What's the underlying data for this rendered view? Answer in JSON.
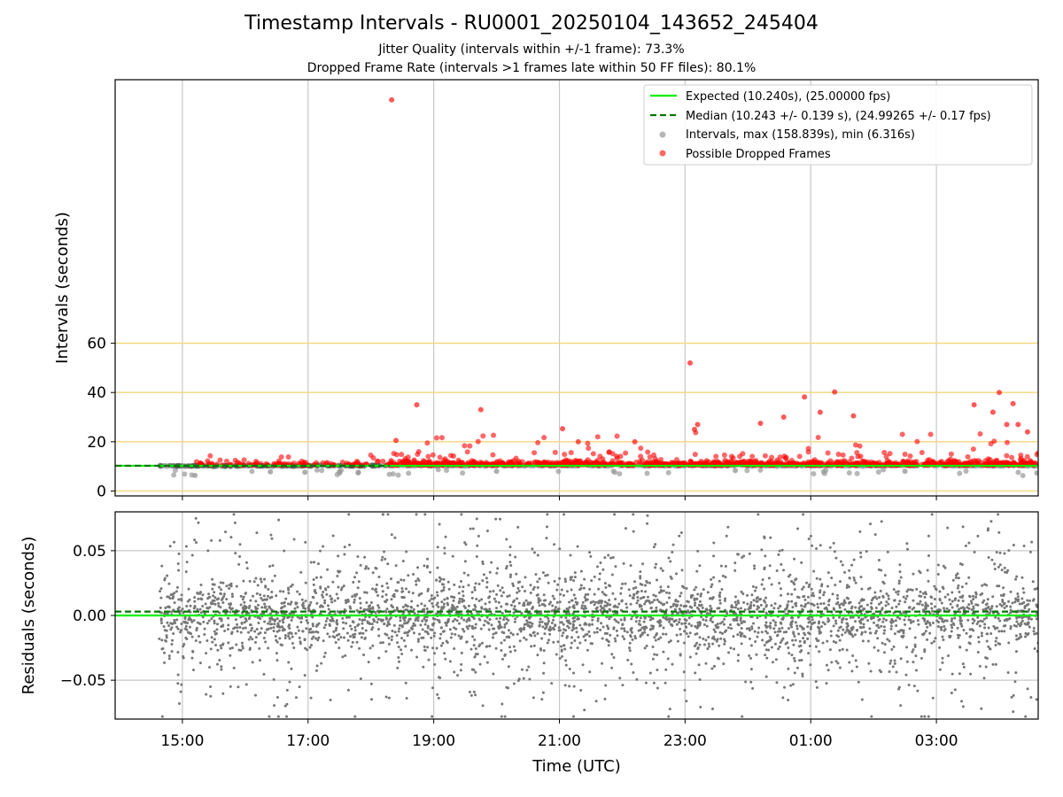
{
  "title": "Timestamp Intervals - RU0001_20250104_143652_245404",
  "subtitle_1": "Jitter Quality (intervals within +/-1 frame): 73.3%",
  "subtitle_2": "Dropped Frame Rate (intervals >1 frames late within 50 FF files): 80.1%",
  "colors": {
    "expected": "#00ee00",
    "median": "#007700",
    "intervals": "#999999",
    "dropped": "#ff0000",
    "residuals": "#777777",
    "reference": "#f5d77a",
    "grid": "#c8c8c8"
  },
  "chart_data": [
    {
      "type": "scatter",
      "panel": "intervals",
      "ylabel": "Intervals (seconds)",
      "y_ticks": [
        0,
        20,
        40,
        60
      ],
      "ylim": [
        -2,
        167
      ],
      "x_ticks": [
        "15:00",
        "17:00",
        "19:00",
        "21:00",
        "23:00",
        "01:00",
        "03:00"
      ],
      "xlim_hours": [
        13.93,
        28.62
      ],
      "reference_lines": [
        0,
        20,
        40,
        60
      ],
      "grid": "vertical",
      "legend_position": "top-right",
      "legend": [
        {
          "label": "Expected (10.240s), (25.00000 fps)",
          "kind": "line"
        },
        {
          "label": "Median (10.243 +/- 0.139 s), (24.99265 +/- 0.17 fps)",
          "kind": "dashed"
        },
        {
          "label": "Intervals, max (158.839s), min (6.316s)",
          "kind": "gray-dot"
        },
        {
          "label": "Possible Dropped Frames",
          "kind": "red-dot"
        }
      ],
      "expected_interval": 10.24,
      "median_interval": 10.243,
      "max_interval": 158.839,
      "min_interval": 6.316,
      "data_start_hour": 14.62,
      "data_end_hour": 28.62,
      "dense_dropped_from_hour": 18.3,
      "notable_points": [
        {
          "x": 18.33,
          "y": 158.8
        },
        {
          "x": 23.08,
          "y": 52.0
        },
        {
          "x": 28.0,
          "y": 40.0
        },
        {
          "x": 25.38,
          "y": 40.2
        },
        {
          "x": 24.9,
          "y": 38.2
        },
        {
          "x": 28.22,
          "y": 35.5
        },
        {
          "x": 18.73,
          "y": 35.0
        },
        {
          "x": 27.6,
          "y": 35.0
        },
        {
          "x": 19.75,
          "y": 33.0
        },
        {
          "x": 25.15,
          "y": 32.0
        },
        {
          "x": 27.9,
          "y": 32.0
        },
        {
          "x": 25.68,
          "y": 30.5
        },
        {
          "x": 24.57,
          "y": 30.0
        },
        {
          "x": 24.2,
          "y": 27.5
        },
        {
          "x": 23.2,
          "y": 27.0
        },
        {
          "x": 28.12,
          "y": 27.0
        },
        {
          "x": 28.3,
          "y": 27.0
        },
        {
          "x": 23.15,
          "y": 25.0
        },
        {
          "x": 21.05,
          "y": 25.3
        },
        {
          "x": 18.4,
          "y": 20.5
        },
        {
          "x": 28.45,
          "y": 24.0
        },
        {
          "x": 21.3,
          "y": 20.0
        },
        {
          "x": 22.2,
          "y": 20.0
        }
      ],
      "n_dropped_points_est": 1400,
      "n_interval_points_est": 4900
    },
    {
      "type": "scatter",
      "panel": "residuals",
      "xlabel": "Time (UTC)",
      "ylabel": "Residuals (seconds)",
      "y_tick_labels": [
        "0.05",
        "0.00",
        "−0.05"
      ],
      "y_tick_values": [
        0.05,
        0.0,
        -0.05
      ],
      "ylim": [
        -0.08,
        0.08
      ],
      "x_ticks": [
        "15:00",
        "17:00",
        "19:00",
        "21:00",
        "23:00",
        "01:00",
        "03:00"
      ],
      "xlim_hours": [
        13.93,
        28.62
      ],
      "grid": "both",
      "expected_residual": 0.0,
      "median_residual": 0.003,
      "residual_range_est": [
        -0.08,
        0.08
      ],
      "n_points_est": 4900
    }
  ]
}
